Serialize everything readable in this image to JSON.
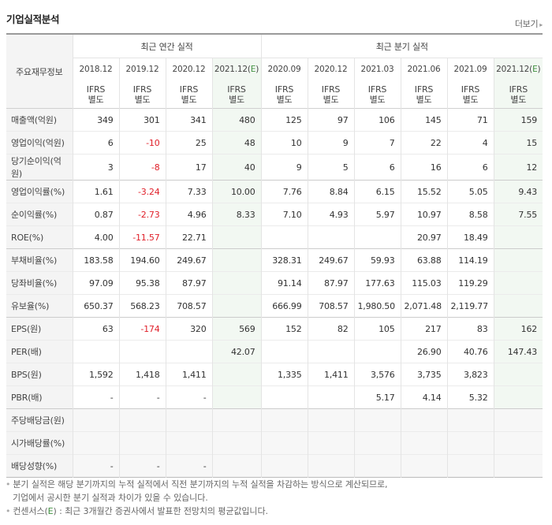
{
  "title": "기업실적분석",
  "more_label": "더보기",
  "header": {
    "label_head": "주요재무정보",
    "annual_group": "최근 연간 실적",
    "quarter_group": "최근 분기 실적",
    "periods": [
      "2018.12",
      "2019.12",
      "2020.12",
      "2021.12(E)",
      "2020.09",
      "2020.12",
      "2021.03",
      "2021.06",
      "2021.09",
      "2021.12(E)"
    ],
    "ifrs_line1": "IFRS",
    "ifrs_line2": "별도"
  },
  "rows": [
    {
      "label": "매출액(억원)",
      "values": [
        "349",
        "301",
        "341",
        "480",
        "125",
        "97",
        "106",
        "145",
        "71",
        "159"
      ]
    },
    {
      "label": "영업이익(억원)",
      "values": [
        "6",
        "-10",
        "25",
        "48",
        "10",
        "9",
        "7",
        "22",
        "4",
        "15"
      ]
    },
    {
      "label": "당기순이익(억원)",
      "values": [
        "3",
        "-8",
        "17",
        "40",
        "9",
        "5",
        "6",
        "16",
        "6",
        "12"
      ]
    },
    {
      "label": "영업이익률(%)",
      "values": [
        "1.61",
        "-3.24",
        "7.33",
        "10.00",
        "7.76",
        "8.84",
        "6.15",
        "15.52",
        "5.05",
        "9.43"
      ]
    },
    {
      "label": "순이익률(%)",
      "values": [
        "0.87",
        "-2.73",
        "4.96",
        "8.33",
        "7.10",
        "4.93",
        "5.97",
        "10.97",
        "8.58",
        "7.55"
      ]
    },
    {
      "label": "ROE(%)",
      "values": [
        "4.00",
        "-11.57",
        "22.71",
        "",
        "",
        "",
        "",
        "20.97",
        "18.49",
        ""
      ]
    },
    {
      "label": "부채비율(%)",
      "values": [
        "183.58",
        "194.60",
        "249.67",
        "",
        "328.31",
        "249.67",
        "59.93",
        "63.88",
        "114.19",
        ""
      ]
    },
    {
      "label": "당좌비율(%)",
      "values": [
        "97.09",
        "95.38",
        "87.97",
        "",
        "91.14",
        "87.97",
        "177.63",
        "115.03",
        "119.29",
        ""
      ]
    },
    {
      "label": "유보율(%)",
      "values": [
        "650.37",
        "568.23",
        "708.57",
        "",
        "666.99",
        "708.57",
        "1,980.50",
        "2,071.48",
        "2,119.77",
        ""
      ]
    },
    {
      "label": "EPS(원)",
      "values": [
        "63",
        "-174",
        "320",
        "569",
        "152",
        "82",
        "105",
        "217",
        "83",
        "162"
      ]
    },
    {
      "label": "PER(배)",
      "values": [
        "",
        "",
        "",
        "42.07",
        "",
        "",
        "",
        "26.90",
        "40.76",
        "147.43"
      ]
    },
    {
      "label": "BPS(원)",
      "values": [
        "1,592",
        "1,418",
        "1,411",
        "",
        "1,335",
        "1,411",
        "3,576",
        "3,735",
        "3,823",
        ""
      ]
    },
    {
      "label": "PBR(배)",
      "values": [
        "-",
        "-",
        "-",
        "",
        "",
        "",
        "5.17",
        "4.14",
        "5.32",
        ""
      ]
    },
    {
      "label": "주당배당금(원)",
      "values": [
        "",
        "",
        "",
        "",
        "",
        "",
        "",
        "",
        "",
        ""
      ]
    },
    {
      "label": "시가배당률(%)",
      "values": [
        "",
        "",
        "",
        "",
        "",
        "",
        "",
        "",
        "",
        ""
      ]
    },
    {
      "label": "배당성향(%)",
      "values": [
        "-",
        "-",
        "-",
        "",
        "",
        "",
        "",
        "",
        "",
        ""
      ]
    }
  ],
  "notes": {
    "line1": "분기 실적은 해당 분기까지의 누적 실적에서 직전 분기까지의 누적 실적을 차감하는 방식으로 계산되므로,",
    "line2": "기업에서 공시한 분기 실적과 차이가 있을 수 있습니다.",
    "line3_prefix": "컨센서스(",
    "line3_e": "E",
    "line3_suffix": ") : 최근 3개월간 증권사에서 발표한 전망치의 평균값입니다."
  }
}
